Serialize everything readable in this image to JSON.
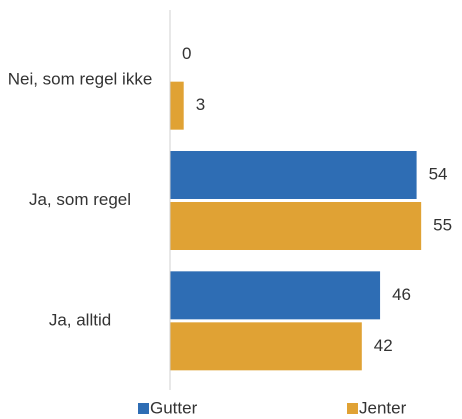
{
  "chart_data": {
    "type": "hbar",
    "categories": [
      "Nei, som regel ikke",
      "Ja, som regel",
      "Ja, alltid"
    ],
    "series": [
      {
        "name": "Gutter",
        "color": "#2e6db4",
        "values": [
          0,
          54,
          46
        ]
      },
      {
        "name": "Jenter",
        "color": "#e0a234",
        "values": [
          3,
          55,
          42
        ]
      }
    ],
    "xlim": [
      0,
      60
    ],
    "legend": "bottom"
  }
}
